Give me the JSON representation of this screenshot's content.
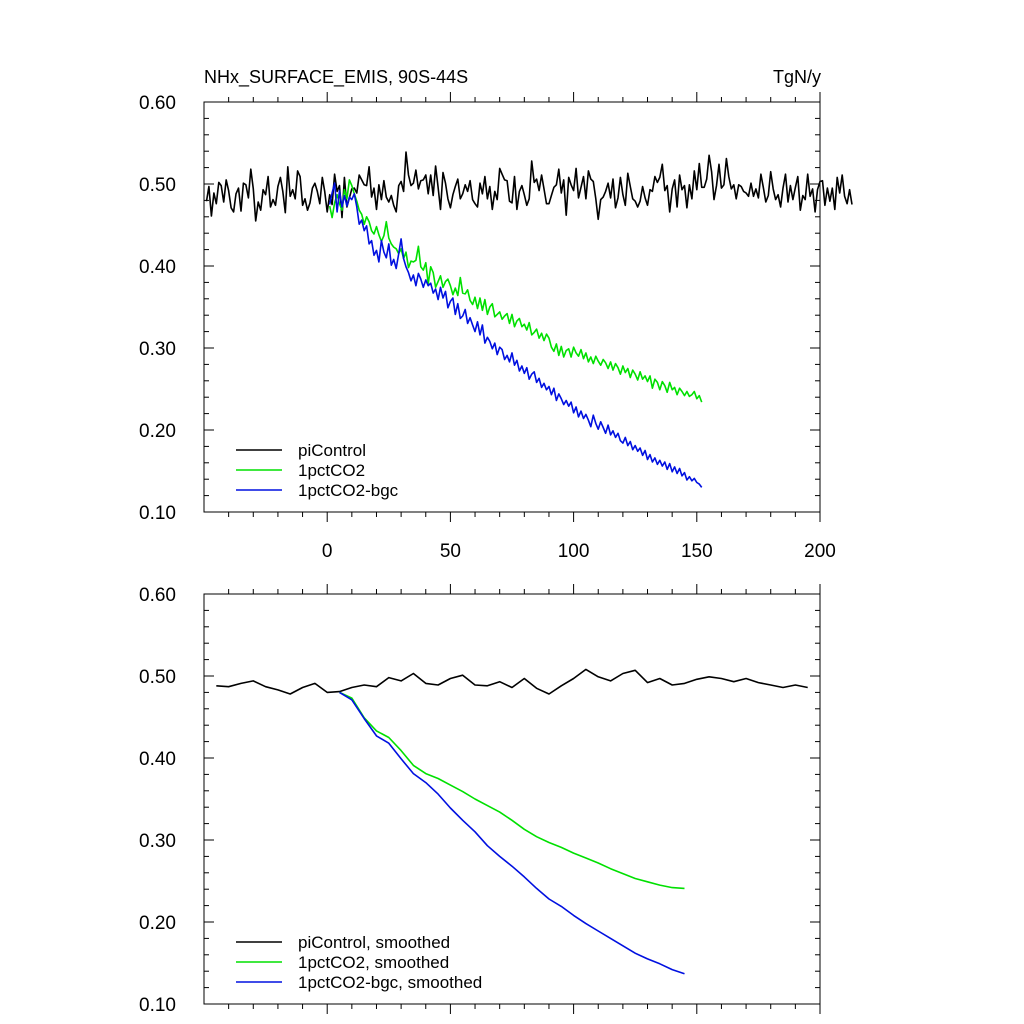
{
  "colors": {
    "piControl": "#000000",
    "1pctCO2": "#00e000",
    "1pctCO2-bgc": "#0010e0"
  },
  "chart_data": [
    {
      "type": "line",
      "title": "NHx_SURFACE_EMIS, 90S-44S",
      "units": "TgN/y",
      "xlabel": "",
      "ylabel": "",
      "xlim": [
        -50,
        200
      ],
      "ylim": [
        0.1,
        0.6
      ],
      "xticks": [
        0,
        50,
        100,
        150,
        200
      ],
      "yticks": [
        0.1,
        0.2,
        0.3,
        0.4,
        0.5,
        0.6
      ],
      "ytick_labels": [
        "0.10",
        "0.20",
        "0.30",
        "0.40",
        "0.50",
        "0.60"
      ],
      "legend_position": "bottom-left",
      "series": [
        {
          "name": "piControl",
          "color_key": "piControl",
          "x_start": -49,
          "x_step": 1,
          "values": [
            0.479,
            0.497,
            0.461,
            0.489,
            0.476,
            0.502,
            0.498,
            0.478,
            0.505,
            0.492,
            0.471,
            0.466,
            0.488,
            0.495,
            0.467,
            0.501,
            0.499,
            0.483,
            0.518,
            0.494,
            0.455,
            0.478,
            0.468,
            0.493,
            0.487,
            0.509,
            0.472,
            0.481,
            0.474,
            0.497,
            0.508,
            0.491,
            0.465,
            0.521,
            0.485,
            0.493,
            0.482,
            0.516,
            0.509,
            0.474,
            0.482,
            0.468,
            0.477,
            0.495,
            0.501,
            0.491,
            0.476,
            0.508,
            0.491,
            0.466,
            0.487,
            0.475,
            0.512,
            0.491,
            0.498,
            0.459,
            0.508,
            0.472,
            0.483,
            0.494,
            0.495,
            0.489,
            0.511,
            0.505,
            0.499,
            0.498,
            0.521,
            0.484,
            0.495,
            0.469,
            0.499,
            0.481,
            0.504,
            0.484,
            0.478,
            0.486,
            0.474,
            0.466,
            0.498,
            0.503,
            0.491,
            0.539,
            0.511,
            0.498,
            0.501,
            0.517,
            0.494,
            0.504,
            0.505,
            0.511,
            0.488,
            0.511,
            0.486,
            0.522,
            0.496,
            0.469,
            0.514,
            0.501,
            0.482,
            0.471,
            0.487,
            0.497,
            0.506,
            0.482,
            0.488,
            0.499,
            0.491,
            0.504,
            0.481,
            0.476,
            0.472,
            0.501,
            0.488,
            0.509,
            0.482,
            0.497,
            0.469,
            0.491,
            0.481,
            0.519,
            0.512,
            0.505,
            0.504,
            0.479,
            0.477,
            0.509,
            0.469,
            0.491,
            0.498,
            0.487,
            0.474,
            0.482,
            0.528,
            0.502,
            0.506,
            0.492,
            0.511,
            0.494,
            0.476,
            0.476,
            0.486,
            0.496,
            0.499,
            0.518,
            0.489,
            0.505,
            0.462,
            0.508,
            0.499,
            0.492,
            0.519,
            0.483,
            0.496,
            0.509,
            0.482,
            0.516,
            0.506,
            0.503,
            0.482,
            0.457,
            0.481,
            0.484,
            0.491,
            0.501,
            0.483,
            0.506,
            0.471,
            0.483,
            0.508,
            0.487,
            0.474,
            0.513,
            0.497,
            0.482,
            0.479,
            0.472,
            0.479,
            0.497,
            0.483,
            0.474,
            0.493,
            0.491,
            0.509,
            0.502,
            0.508,
            0.524,
            0.492,
            0.498,
            0.466,
            0.494,
            0.505,
            0.472,
            0.511,
            0.493,
            0.498,
            0.471,
            0.499,
            0.482,
            0.516,
            0.493,
            0.525,
            0.496,
            0.496,
            0.506,
            0.535,
            0.515,
            0.481,
            0.498,
            0.524,
            0.495,
            0.499,
            0.531,
            0.509,
            0.494,
            0.499,
            0.482,
            0.499,
            0.497,
            0.491,
            0.489,
            0.485,
            0.501,
            0.485,
            0.494,
            0.483,
            0.512,
            0.496,
            0.478,
            0.486,
            0.515,
            0.494,
            0.481,
            0.487,
            0.472,
            0.495,
            0.512,
            0.478,
            0.498,
            0.481,
            0.496,
            0.509,
            0.468,
            0.486,
            0.481,
            0.512,
            0.485,
            0.494,
            0.466,
            0.493,
            0.503,
            0.504,
            0.474,
            0.495,
            0.479,
            0.495,
            0.469,
            0.508,
            0.489,
            0.511,
            0.485,
            0.476,
            0.493,
            0.475
          ]
        },
        {
          "name": "1pctCO2",
          "color_key": "1pctCO2",
          "x_start": 1,
          "x_step": 1,
          "values": [
            0.473,
            0.459,
            0.477,
            0.487,
            0.476,
            0.468,
            0.493,
            0.482,
            0.505,
            0.498,
            0.488,
            0.479,
            0.468,
            0.463,
            0.451,
            0.46,
            0.454,
            0.443,
            0.439,
            0.448,
            0.438,
            0.43,
            0.437,
            0.454,
            0.434,
            0.427,
            0.423,
            0.421,
            0.415,
            0.421,
            0.409,
            0.417,
            0.398,
            0.406,
            0.405,
            0.407,
            0.424,
            0.399,
            0.395,
            0.404,
            0.378,
            0.399,
            0.392,
            0.374,
            0.381,
            0.388,
            0.374,
            0.381,
            0.384,
            0.376,
            0.365,
            0.373,
            0.364,
            0.386,
            0.367,
            0.366,
            0.371,
            0.358,
            0.353,
            0.362,
            0.348,
            0.361,
            0.346,
            0.359,
            0.341,
            0.35,
            0.354,
            0.338,
            0.341,
            0.344,
            0.335,
            0.339,
            0.342,
            0.33,
            0.341,
            0.326,
            0.333,
            0.336,
            0.326,
            0.329,
            0.322,
            0.331,
            0.316,
            0.319,
            0.323,
            0.312,
            0.318,
            0.309,
            0.317,
            0.312,
            0.301,
            0.296,
            0.305,
            0.291,
            0.302,
            0.289,
            0.297,
            0.299,
            0.289,
            0.301,
            0.294,
            0.29,
            0.298,
            0.287,
            0.294,
            0.283,
            0.289,
            0.281,
            0.29,
            0.284,
            0.279,
            0.286,
            0.282,
            0.275,
            0.283,
            0.273,
            0.281,
            0.276,
            0.268,
            0.278,
            0.27,
            0.275,
            0.264,
            0.273,
            0.268,
            0.261,
            0.271,
            0.262,
            0.266,
            0.259,
            0.266,
            0.251,
            0.262,
            0.258,
            0.249,
            0.259,
            0.254,
            0.246,
            0.258,
            0.249,
            0.252,
            0.243,
            0.251,
            0.247,
            0.242,
            0.247,
            0.241,
            0.243,
            0.247,
            0.238,
            0.242,
            0.234
          ]
        },
        {
          "name": "1pctCO2-bgc",
          "color_key": "1pctCO2-bgc",
          "x_start": 1,
          "x_step": 1,
          "values": [
            0.475,
            0.489,
            0.501,
            0.466,
            0.492,
            0.472,
            0.486,
            0.473,
            0.484,
            0.481,
            0.488,
            0.472,
            0.451,
            0.456,
            0.443,
            0.449,
            0.427,
            0.431,
            0.413,
            0.419,
            0.405,
            0.431,
            0.417,
            0.41,
            0.427,
            0.401,
            0.408,
            0.397,
            0.415,
            0.433,
            0.409,
            0.399,
            0.392,
            0.382,
            0.389,
            0.376,
            0.391,
            0.384,
            0.374,
            0.383,
            0.376,
            0.379,
            0.367,
            0.372,
            0.359,
            0.374,
            0.361,
            0.369,
            0.349,
            0.357,
            0.361,
            0.341,
            0.354,
            0.336,
            0.339,
            0.347,
            0.33,
            0.337,
            0.328,
            0.32,
            0.332,
            0.316,
            0.328,
            0.306,
            0.313,
            0.308,
            0.299,
            0.306,
            0.292,
            0.301,
            0.298,
            0.286,
            0.291,
            0.283,
            0.294,
            0.279,
            0.285,
            0.272,
            0.278,
            0.269,
            0.276,
            0.262,
            0.268,
            0.271,
            0.258,
            0.263,
            0.252,
            0.257,
            0.249,
            0.253,
            0.243,
            0.251,
            0.236,
            0.244,
            0.238,
            0.231,
            0.236,
            0.229,
            0.234,
            0.221,
            0.228,
            0.216,
            0.223,
            0.214,
            0.219,
            0.212,
            0.204,
            0.218,
            0.208,
            0.201,
            0.21,
            0.203,
            0.196,
            0.206,
            0.194,
            0.199,
            0.191,
            0.196,
            0.187,
            0.184,
            0.191,
            0.181,
            0.186,
            0.176,
            0.181,
            0.174,
            0.178,
            0.169,
            0.175,
            0.164,
            0.17,
            0.161,
            0.166,
            0.158,
            0.163,
            0.156,
            0.161,
            0.152,
            0.159,
            0.149,
            0.155,
            0.147,
            0.153,
            0.144,
            0.148,
            0.139,
            0.143,
            0.138,
            0.141,
            0.136,
            0.134,
            0.13
          ]
        }
      ]
    },
    {
      "type": "line",
      "title": "",
      "units": "",
      "xlabel": "",
      "ylabel": "",
      "xlim": [
        -50,
        200
      ],
      "ylim": [
        0.1,
        0.6
      ],
      "xticks": [
        0,
        50,
        100,
        150,
        200
      ],
      "yticks": [
        0.1,
        0.2,
        0.3,
        0.4,
        0.5,
        0.6
      ],
      "ytick_labels": [
        "0.10",
        "0.20",
        "0.30",
        "0.40",
        "0.50",
        "0.60"
      ],
      "legend_position": "bottom-left",
      "series": [
        {
          "name": "piControl, smoothed",
          "color_key": "piControl",
          "x_start": -45,
          "x_step": 5,
          "values": [
            0.488,
            0.487,
            0.491,
            0.494,
            0.487,
            0.483,
            0.478,
            0.486,
            0.491,
            0.48,
            0.481,
            0.486,
            0.489,
            0.487,
            0.498,
            0.494,
            0.503,
            0.491,
            0.489,
            0.497,
            0.501,
            0.489,
            0.488,
            0.493,
            0.486,
            0.497,
            0.485,
            0.478,
            0.488,
            0.497,
            0.508,
            0.499,
            0.494,
            0.503,
            0.507,
            0.492,
            0.497,
            0.489,
            0.491,
            0.496,
            0.499,
            0.497,
            0.493,
            0.497,
            0.492,
            0.489,
            0.486,
            0.489,
            0.486
          ]
        },
        {
          "name": "1pctCO2, smoothed",
          "color_key": "1pctCO2",
          "x_start": 5,
          "x_step": 5,
          "values": [
            0.48,
            0.473,
            0.449,
            0.433,
            0.425,
            0.409,
            0.391,
            0.381,
            0.375,
            0.367,
            0.359,
            0.35,
            0.342,
            0.334,
            0.324,
            0.313,
            0.304,
            0.297,
            0.291,
            0.284,
            0.278,
            0.272,
            0.265,
            0.259,
            0.253,
            0.249,
            0.245,
            0.242,
            0.241
          ]
        },
        {
          "name": "1pctCO2-bgc, smoothed",
          "color_key": "1pctCO2-bgc",
          "x_start": 5,
          "x_step": 5,
          "values": [
            0.48,
            0.471,
            0.448,
            0.427,
            0.418,
            0.399,
            0.381,
            0.37,
            0.356,
            0.339,
            0.324,
            0.31,
            0.293,
            0.28,
            0.268,
            0.255,
            0.241,
            0.228,
            0.219,
            0.208,
            0.198,
            0.189,
            0.18,
            0.171,
            0.162,
            0.155,
            0.149,
            0.142,
            0.137
          ]
        }
      ]
    }
  ]
}
